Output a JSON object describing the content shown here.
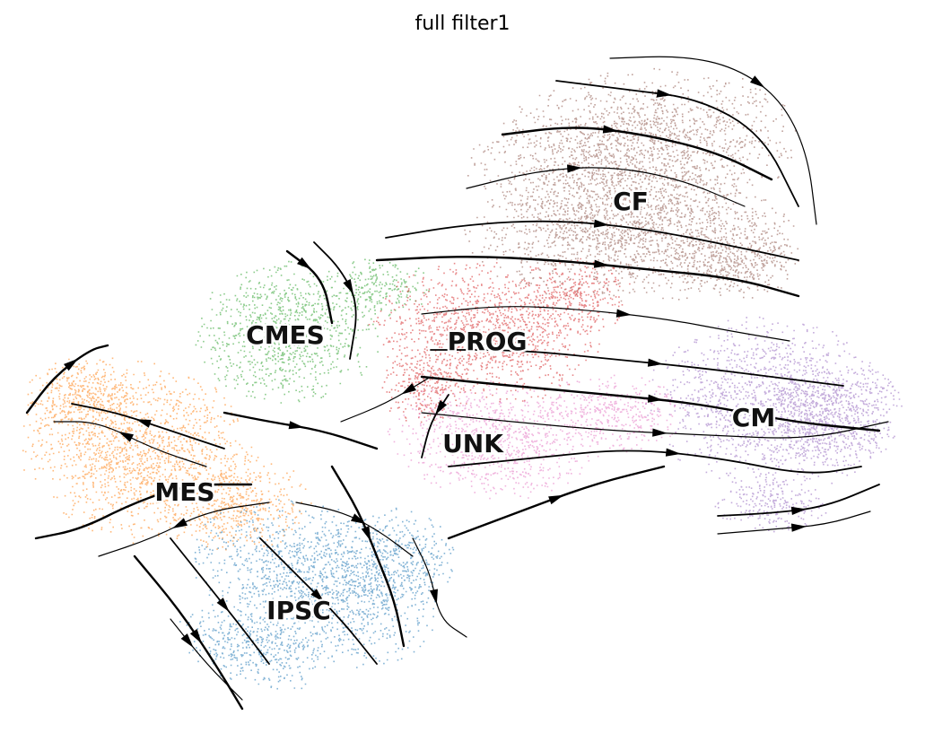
{
  "chart_data": {
    "type": "scatter",
    "title": "full filter1",
    "xlabel": "",
    "ylabel": "",
    "grid": false,
    "axes_visible": false,
    "overlay": "velocity streamlines with arrowheads",
    "clusters": [
      {
        "name": "CF",
        "color": "#8c564b"
      },
      {
        "name": "PROG",
        "color": "#d62728"
      },
      {
        "name": "CMES",
        "color": "#2ca02c"
      },
      {
        "name": "CM",
        "color": "#9467bd"
      },
      {
        "name": "UNK",
        "color": "#e377c2"
      },
      {
        "name": "MES",
        "color": "#ff7f0e"
      },
      {
        "name": "IPSC",
        "color": "#1f77b4"
      }
    ]
  }
}
